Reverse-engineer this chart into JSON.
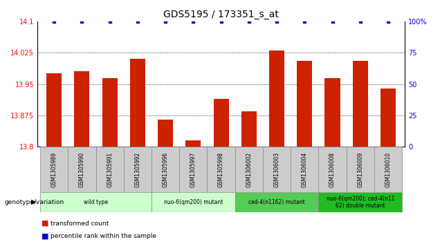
{
  "title": "GDS5195 / 173351_s_at",
  "samples": [
    "GSM1305989",
    "GSM1305990",
    "GSM1305991",
    "GSM1305992",
    "GSM1305996",
    "GSM1305997",
    "GSM1305998",
    "GSM1306002",
    "GSM1306003",
    "GSM1306004",
    "GSM1306008",
    "GSM1306009",
    "GSM1306010"
  ],
  "red_values": [
    13.975,
    13.98,
    13.965,
    14.01,
    13.865,
    13.815,
    13.915,
    13.885,
    14.03,
    14.005,
    13.965,
    14.005,
    13.94
  ],
  "blue_values": [
    100,
    100,
    100,
    100,
    100,
    100,
    100,
    100,
    100,
    100,
    100,
    100,
    100
  ],
  "ylim_left": [
    13.8,
    14.1
  ],
  "ylim_right": [
    0,
    100
  ],
  "yticks_left": [
    13.8,
    13.875,
    13.95,
    14.025,
    14.1
  ],
  "yticks_left_labels": [
    "13.8",
    "13.875",
    "13.95",
    "14.025",
    "14.1"
  ],
  "yticks_right": [
    0,
    25,
    50,
    75,
    100
  ],
  "yticks_right_labels": [
    "0",
    "25",
    "50",
    "75",
    "100%"
  ],
  "bar_color": "#cc2200",
  "dot_color": "#0000cc",
  "groups": [
    {
      "label": "wild type",
      "indices": [
        0,
        1,
        2,
        3
      ],
      "color": "#ccffcc"
    },
    {
      "label": "nuo-6(qm200) mutant",
      "indices": [
        4,
        5,
        6
      ],
      "color": "#ccffcc"
    },
    {
      "label": "ced-4(n1162) mutant",
      "indices": [
        7,
        8,
        9
      ],
      "color": "#55cc55"
    },
    {
      "label": "nuo-6(qm200); ced-4(n11\n62) double mutant",
      "indices": [
        10,
        11,
        12
      ],
      "color": "#22bb22"
    }
  ],
  "legend": [
    {
      "label": "transformed count",
      "color": "#cc2200"
    },
    {
      "label": "percentile rank within the sample",
      "color": "#0000cc"
    }
  ]
}
